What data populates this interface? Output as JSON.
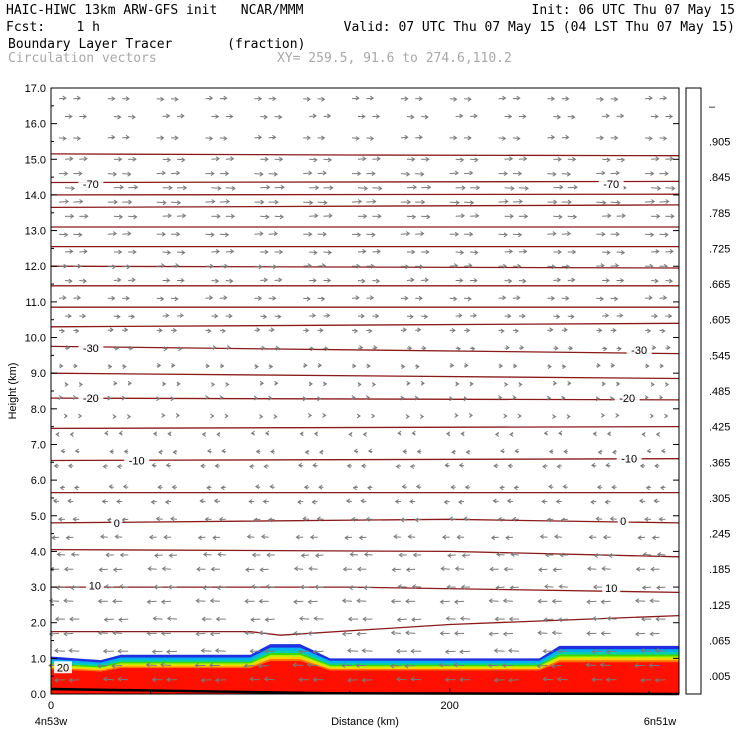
{
  "header": {
    "line1_left": "HAIC-HIWC 13km ARW-GFS init   NCAR/MMM",
    "line1_right": "Init: 06 UTC Thu 07 May 15",
    "line2_left": "Fcst:    1 h",
    "line2_right": "Valid: 07 UTC Thu 07 May 15 (04 LST Thu 07 May 15)",
    "line3_left": "Boundary Layer Tracer       (fraction)",
    "line4_left": "Circulation vectors",
    "line4_right": "XY= 259.5, 91.6 to 274.6,110.2"
  },
  "colors": {
    "contour": "#8b1a1a",
    "vector": "#7a7a7a",
    "frame": "#000000"
  },
  "chart_data": {
    "type": "heatmap",
    "title": "Boundary Layer Tracer",
    "units": "(fraction)",
    "xlabel": "Distance (km)",
    "ylabel": "Height (km)",
    "xlim": [
      0,
      315
    ],
    "ylim": [
      0,
      17
    ],
    "x_ticks": [
      "0",
      "200"
    ],
    "x_tick_values": [
      0,
      200
    ],
    "y_ticks": [
      "0.0",
      "1.0",
      "2.0",
      "3.0",
      "4.0",
      "5.0",
      "6.0",
      "7.0",
      "8.0",
      "9.0",
      "10.0",
      "11.0",
      "12.0",
      "13.0",
      "14.0",
      "15.0",
      "16.0",
      "17.0"
    ],
    "y_tick_values": [
      0,
      1,
      2,
      3,
      4,
      5,
      6,
      7,
      8,
      9,
      10,
      11,
      12,
      13,
      14,
      15,
      16,
      17
    ],
    "endpoints": {
      "left": "4n53w",
      "right": "6n51w"
    },
    "colorbar": {
      "labels": [
        "–",
        ".905",
        ".845",
        ".785",
        ".725",
        ".665",
        ".605",
        ".545",
        ".485",
        ".425",
        ".365",
        ".305",
        ".245",
        ".185",
        ".125",
        ".065",
        ".005"
      ],
      "colors": [
        "#ff0000",
        "#ff1a00",
        "#ff4400",
        "#ff6e00",
        "#ff9800",
        "#ffc400",
        "#ffee00",
        "#c8f000",
        "#7ae800",
        "#20d800",
        "#00c878",
        "#00c0c8",
        "#0090f0",
        "#0050e8",
        "#2020d0",
        "#2828a8",
        "#ffffff"
      ]
    },
    "contour_labels": [
      {
        "text": "-70",
        "x": 20,
        "y": 14.3
      },
      {
        "text": "-70",
        "x": 281,
        "y": 14.3
      },
      {
        "text": "-30",
        "x": 20,
        "y": 9.7
      },
      {
        "text": "-30",
        "x": 295,
        "y": 9.65
      },
      {
        "text": "-20",
        "x": 20,
        "y": 8.3
      },
      {
        "text": "-20",
        "x": 289,
        "y": 8.3
      },
      {
        "text": "-10",
        "x": 43,
        "y": 6.55
      },
      {
        "text": "-10",
        "x": 290,
        "y": 6.6
      },
      {
        "text": "0",
        "x": 33,
        "y": 4.8
      },
      {
        "text": "0",
        "x": 287,
        "y": 4.85
      },
      {
        "text": "10",
        "x": 22,
        "y": 3.05
      },
      {
        "text": "10",
        "x": 281,
        "y": 2.98
      },
      {
        "text": "20",
        "x": 6,
        "y": 0.75
      }
    ],
    "isotherms": [
      [
        [
          0,
          15.15
        ],
        [
          150,
          15.12
        ],
        [
          315,
          15.1
        ]
      ],
      [
        [
          0,
          14.35
        ],
        [
          315,
          14.38
        ]
      ],
      [
        [
          0,
          14.0
        ],
        [
          315,
          14.02
        ]
      ],
      [
        [
          0,
          13.65
        ],
        [
          315,
          13.72
        ]
      ],
      [
        [
          0,
          13.1
        ],
        [
          315,
          13.1
        ]
      ],
      [
        [
          0,
          12.55
        ],
        [
          315,
          12.55
        ]
      ],
      [
        [
          0,
          12.0
        ],
        [
          315,
          11.95
        ]
      ],
      [
        [
          0,
          11.45
        ],
        [
          315,
          11.45
        ]
      ],
      [
        [
          0,
          10.85
        ],
        [
          315,
          10.85
        ]
      ],
      [
        [
          0,
          10.3
        ],
        [
          315,
          10.4
        ]
      ],
      [
        [
          0,
          9.75
        ],
        [
          315,
          9.55
        ]
      ],
      [
        [
          0,
          9.0
        ],
        [
          315,
          8.85
        ]
      ],
      [
        [
          0,
          8.3
        ],
        [
          315,
          8.25
        ]
      ],
      [
        [
          0,
          7.45
        ],
        [
          315,
          7.5
        ]
      ],
      [
        [
          0,
          6.55
        ],
        [
          315,
          6.6
        ]
      ],
      [
        [
          0,
          5.65
        ],
        [
          315,
          5.65
        ]
      ],
      [
        [
          0,
          4.8
        ],
        [
          200,
          4.9
        ],
        [
          315,
          4.8
        ]
      ],
      [
        [
          0,
          4.05
        ],
        [
          200,
          4.0
        ],
        [
          315,
          3.85
        ]
      ],
      [
        [
          0,
          3.0
        ],
        [
          150,
          3.0
        ],
        [
          315,
          2.85
        ]
      ],
      [
        [
          0,
          1.75
        ],
        [
          100,
          1.75
        ],
        [
          115,
          1.65
        ],
        [
          200,
          1.95
        ],
        [
          315,
          2.2
        ]
      ]
    ],
    "tracer_top": [
      [
        0,
        1.05
      ],
      [
        25,
        0.95
      ],
      [
        35,
        1.1
      ],
      [
        100,
        1.1
      ],
      [
        110,
        1.4
      ],
      [
        125,
        1.4
      ],
      [
        140,
        1.0
      ],
      [
        245,
        1.0
      ],
      [
        255,
        1.35
      ],
      [
        315,
        1.35
      ]
    ],
    "vectors": {
      "rows": [
        16.7,
        16.2,
        15.6,
        15.0,
        14.6,
        14.2,
        13.8,
        13.4,
        12.9,
        12.4,
        12.0,
        11.6,
        11.1,
        10.6,
        10.2,
        9.7,
        9.2,
        8.7,
        8.3,
        7.8,
        7.3,
        6.8,
        6.4,
        5.8,
        5.4,
        4.9,
        4.4,
        3.9,
        3.5,
        3.0,
        2.6,
        2.1,
        1.7,
        1.2,
        0.8,
        0.4
      ],
      "u": [
        0.6,
        0.6,
        0.6,
        0.7,
        0.8,
        0.9,
        0.9,
        0.8,
        0.8,
        0.7,
        0.7,
        0.6,
        0.6,
        0.5,
        0.4,
        0.3,
        0.2,
        0.1,
        0.1,
        0.0,
        -0.1,
        -0.2,
        -0.3,
        -0.3,
        -0.4,
        -0.5,
        -0.6,
        -0.7,
        -0.8,
        -0.8,
        -0.9,
        -0.9,
        -0.9,
        -1.0,
        -1.0,
        -1.0
      ]
    }
  }
}
